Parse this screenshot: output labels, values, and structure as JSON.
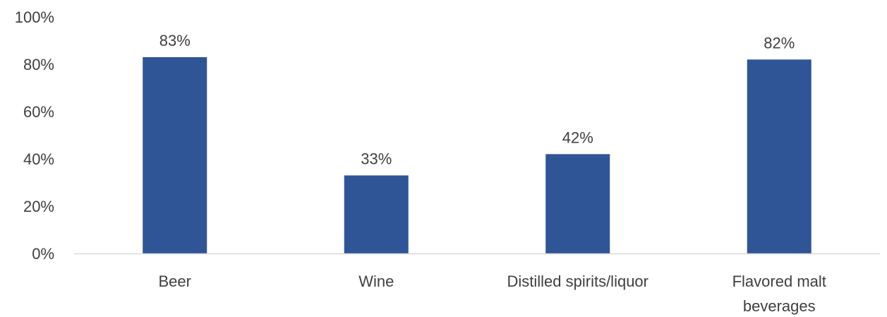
{
  "chart_data": {
    "type": "bar",
    "categories": [
      [
        "Beer"
      ],
      [
        "Wine"
      ],
      [
        "Distilled spirits/liquor"
      ],
      [
        "Flavored malt",
        "beverages"
      ]
    ],
    "values": [
      83,
      33,
      42,
      82
    ],
    "data_labels": [
      "83%",
      "33%",
      "42%",
      "82%"
    ],
    "y_ticks": [
      {
        "value": 0,
        "label": "0%"
      },
      {
        "value": 20,
        "label": "20%"
      },
      {
        "value": 40,
        "label": "40%"
      },
      {
        "value": 60,
        "label": "60%"
      },
      {
        "value": 80,
        "label": "80%"
      },
      {
        "value": 100,
        "label": "100%"
      }
    ],
    "ylim": [
      0,
      100
    ],
    "grid": false,
    "legend": "none",
    "colors": {
      "bar": "#2f5597",
      "axis": "#d9d9d9",
      "text": "#404040"
    }
  }
}
